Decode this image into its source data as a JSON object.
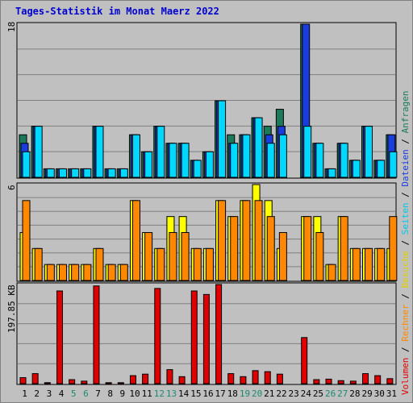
{
  "title": "Tages-Statistik im Monat Maerz 2022",
  "colors": {
    "background": "#c0c0c0",
    "grid": "#808080",
    "title": "#0000d0",
    "anfragen": "#1a7a5a",
    "dateien": "#1a3cdc",
    "seiten": "#00d8ff",
    "besuche": "#ffff00",
    "rechner": "#ff8800",
    "volumen": "#e00000",
    "weekend_label": "#1a8a70",
    "weekday_label": "#000000"
  },
  "chart_data": [
    {
      "type": "bar",
      "panel": "top",
      "ylabel_max": "18",
      "ylim": [
        0,
        18
      ],
      "categories": [
        "1",
        "2",
        "3",
        "4",
        "5",
        "6",
        "7",
        "8",
        "9",
        "10",
        "11",
        "12",
        "13",
        "14",
        "15",
        "16",
        "17",
        "18",
        "19",
        "20",
        "21",
        "22",
        "23",
        "24",
        "25",
        "26",
        "27",
        "28",
        "29",
        "30",
        "31"
      ],
      "series": [
        {
          "name": "Anfragen",
          "color": "#1a7a5a",
          "values": [
            5,
            6,
            1,
            1,
            1,
            1,
            6,
            1,
            1,
            5,
            3,
            6,
            4,
            4,
            2,
            3,
            9,
            5,
            5,
            7,
            6,
            8,
            0,
            18,
            4,
            1,
            4,
            2,
            6,
            2,
            5
          ]
        },
        {
          "name": "Dateien",
          "color": "#1a3cdc",
          "values": [
            4,
            6,
            1,
            1,
            1,
            1,
            6,
            1,
            1,
            5,
            3,
            6,
            4,
            4,
            2,
            3,
            9,
            4,
            5,
            7,
            5,
            6,
            0,
            18,
            4,
            1,
            4,
            2,
            6,
            2,
            5
          ]
        },
        {
          "name": "Seiten",
          "color": "#00d8ff",
          "values": [
            3,
            6,
            1,
            1,
            1,
            1,
            6,
            1,
            1,
            5,
            3,
            6,
            4,
            4,
            2,
            3,
            9,
            4,
            5,
            7,
            4,
            5,
            0,
            6,
            4,
            1,
            4,
            2,
            6,
            2,
            3
          ]
        }
      ]
    },
    {
      "type": "bar",
      "panel": "middle",
      "ylabel_max": "6",
      "ylim": [
        0,
        6
      ],
      "categories": [
        "1",
        "2",
        "3",
        "4",
        "5",
        "6",
        "7",
        "8",
        "9",
        "10",
        "11",
        "12",
        "13",
        "14",
        "15",
        "16",
        "17",
        "18",
        "19",
        "20",
        "21",
        "22",
        "23",
        "24",
        "25",
        "26",
        "27",
        "28",
        "29",
        "30",
        "31"
      ],
      "series": [
        {
          "name": "Besuche",
          "color": "#ffff00",
          "values": [
            3,
            2,
            1,
            1,
            1,
            1,
            2,
            1,
            1,
            5,
            3,
            2,
            4,
            4,
            2,
            2,
            5,
            4,
            5,
            6,
            5,
            2,
            0,
            4,
            4,
            1,
            4,
            2,
            2,
            2,
            2
          ]
        },
        {
          "name": "Rechner",
          "color": "#ff8800",
          "values": [
            5,
            2,
            1,
            1,
            1,
            1,
            2,
            1,
            1,
            5,
            3,
            2,
            3,
            3,
            2,
            2,
            5,
            4,
            5,
            5,
            4,
            3,
            0,
            4,
            3,
            1,
            4,
            2,
            2,
            2,
            4
          ]
        }
      ]
    },
    {
      "type": "bar",
      "panel": "bottom",
      "ylabel_max": "197.85 KB",
      "ylim": [
        0,
        197.85
      ],
      "categories": [
        "1",
        "2",
        "3",
        "4",
        "5",
        "6",
        "7",
        "8",
        "9",
        "10",
        "11",
        "12",
        "13",
        "14",
        "15",
        "16",
        "17",
        "18",
        "19",
        "20",
        "21",
        "22",
        "23",
        "24",
        "25",
        "26",
        "27",
        "28",
        "29",
        "30",
        "31"
      ],
      "series": [
        {
          "name": "Volumen",
          "color": "#e00000",
          "values": [
            12,
            20,
            2,
            185,
            8,
            5,
            195,
            2,
            2,
            16,
            19,
            190,
            28,
            14,
            185,
            178,
            205,
            20,
            14,
            26,
            24,
            19,
            0,
            92,
            8,
            9,
            6,
            5,
            20,
            16,
            10
          ]
        }
      ]
    }
  ],
  "x_axis": {
    "labels": [
      "1",
      "2",
      "3",
      "4",
      "5",
      "6",
      "7",
      "8",
      "9",
      "10",
      "11",
      "12",
      "13",
      "14",
      "15",
      "16",
      "17",
      "18",
      "19",
      "20",
      "21",
      "22",
      "23",
      "24",
      "25",
      "26",
      "27",
      "28",
      "29",
      "30",
      "31"
    ],
    "weekend": [
      5,
      6,
      12,
      13,
      19,
      20,
      26,
      27
    ]
  },
  "legend": [
    {
      "text": "Volumen",
      "color": "#e00000"
    },
    {
      "text": "Rechner",
      "color": "#ff8800"
    },
    {
      "text": "Besuche",
      "color": "#e0d000"
    },
    {
      "text": "Seiten",
      "color": "#00c8e8"
    },
    {
      "text": "Dateien",
      "color": "#1a3cdc"
    },
    {
      "text": "Anfragen",
      "color": "#1a7a5a"
    }
  ],
  "legend_separator": " / "
}
